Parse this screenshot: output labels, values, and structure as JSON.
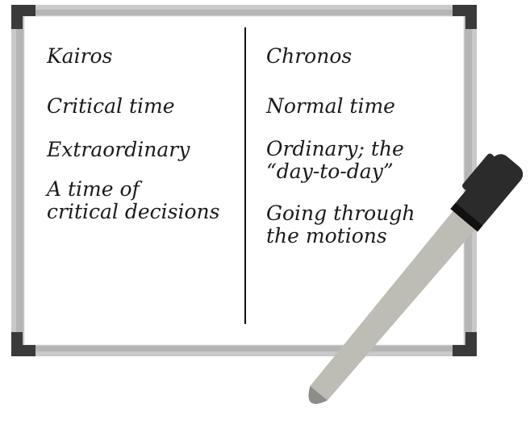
{
  "columns": [
    {
      "heading": "Kairos",
      "items": [
        {
          "lines": [
            "Critical time"
          ]
        },
        {
          "lines": [
            "Extraordinary"
          ]
        },
        {
          "lines": [
            "A time of",
            "critical decisions"
          ]
        }
      ]
    },
    {
      "heading": "Chronos",
      "items": [
        {
          "lines": [
            "Normal time"
          ]
        },
        {
          "lines": [
            "Ordinary; the",
            "“day-to-day”"
          ]
        },
        {
          "lines": [
            "Going through",
            "the motions"
          ]
        }
      ]
    }
  ]
}
